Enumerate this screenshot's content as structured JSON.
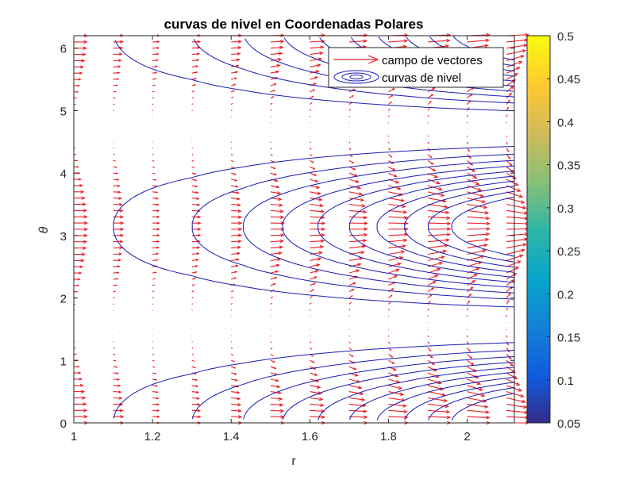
{
  "chart_data": {
    "type": "contour+quiver",
    "title": "curvas de nivel en Coordenadas Polares",
    "xlabel": "r",
    "ylabel": "θ",
    "xlim": [
      1,
      2.12
    ],
    "ylim": [
      0,
      6.2
    ],
    "xticks": [
      "1",
      "1.2",
      "1.4",
      "1.6",
      "1.8",
      "2"
    ],
    "xtick_values": [
      1,
      1.2,
      1.4,
      1.6,
      1.8,
      2
    ],
    "yticks": [
      "0",
      "1",
      "2",
      "3",
      "4",
      "5",
      "6"
    ],
    "ytick_values": [
      0,
      1,
      2,
      3,
      4,
      5,
      6
    ],
    "contour_levels": [
      0.05,
      0.1,
      0.15,
      0.2,
      0.25,
      0.3,
      0.35,
      0.4,
      0.45,
      0.5
    ],
    "quiver_grid": {
      "r_step": 0.1,
      "theta_step": 0.1
    },
    "legend": {
      "position": "top-right",
      "entries": [
        {
          "label": "campo de vectores",
          "color": "#ff0000"
        },
        {
          "label": "curvas de nivel",
          "color": "#0000c8"
        }
      ]
    },
    "colorbar": {
      "limits": [
        0.05,
        0.5
      ],
      "ticks": [
        "0.05",
        "0.1",
        "0.15",
        "0.2",
        "0.25",
        "0.3",
        "0.35",
        "0.4",
        "0.45",
        "0.5"
      ],
      "colormap": "parula"
    },
    "colors": {
      "contour": "#1a1ab4",
      "vectors": "#e8202a"
    }
  }
}
